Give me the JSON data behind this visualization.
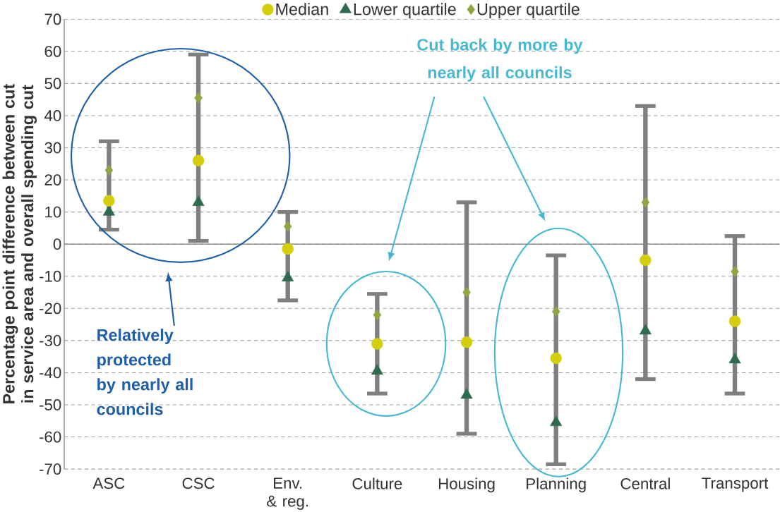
{
  "chart_data": {
    "type": "scatter",
    "ylabel": "Percentage point difference between cut in service area and overall spending cut",
    "categories": [
      "ASC",
      "CSC",
      "Env. & reg.",
      "Culture",
      "Housing",
      "Planning",
      "Central",
      "Transport"
    ],
    "series": [
      {
        "name": "Median",
        "color": "#d4cf0a",
        "marker": "circle",
        "values": [
          13.5,
          26,
          -1.5,
          -31,
          -30.5,
          -35.5,
          -5,
          -24
        ],
        "errors": [
          [
            4.5,
            32
          ],
          [
            1,
            59
          ],
          [
            -17.5,
            10
          ],
          [
            -46.5,
            -15.5
          ],
          [
            -59,
            13
          ],
          [
            -68.5,
            -3.5
          ],
          [
            -42,
            43
          ],
          [
            -46.5,
            2.5
          ]
        ]
      },
      {
        "name": "Lower quartile",
        "color": "#2e6b4f",
        "marker": "triangle",
        "values": [
          10,
          13,
          -10.5,
          -39.5,
          -47,
          -55.5,
          -27,
          -36
        ]
      },
      {
        "name": "Upper quartile",
        "color": "#8fa642",
        "marker": "diamond",
        "values": [
          23,
          45.5,
          5.5,
          -22,
          -15,
          -21,
          13,
          -8.5
        ]
      }
    ],
    "ylim": [
      -70,
      70
    ],
    "yticks": [
      -70,
      -60,
      -50,
      -40,
      -30,
      -20,
      -10,
      0,
      10,
      20,
      30,
      40,
      50,
      60,
      70
    ],
    "grid": "y",
    "legend": "top",
    "annotations": [
      "Relatively protected by nearly all councils",
      "Cut back by more by nearly all councils"
    ]
  }
}
